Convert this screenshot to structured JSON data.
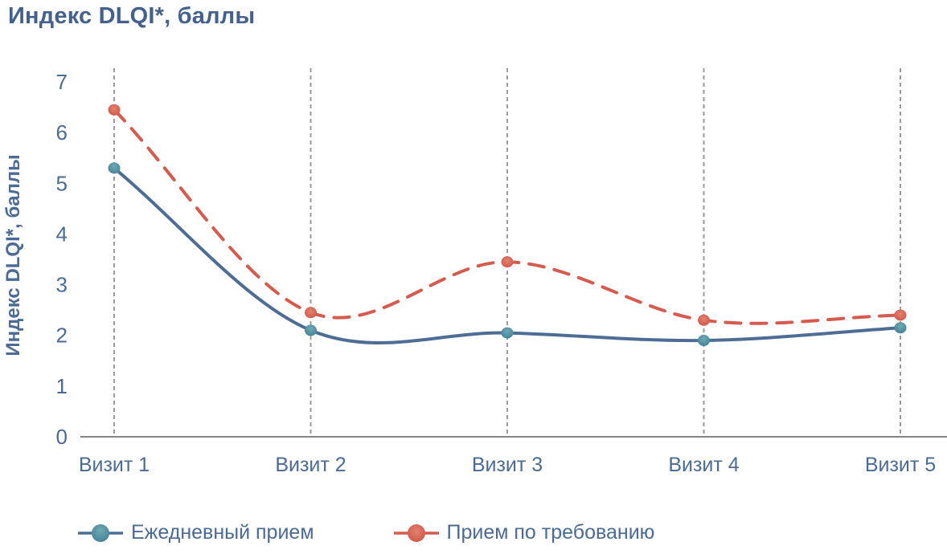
{
  "title": "Индекс DLQI*, баллы",
  "chart_data": {
    "type": "line",
    "title": "Индекс DLQI*, баллы",
    "xlabel": "",
    "ylabel": "Индекс DLQI*, баллы",
    "categories": [
      "Визит 1",
      "Визит 2",
      "Визит 3",
      "Визит 4",
      "Визит 5"
    ],
    "y_ticks": [
      0,
      1,
      2,
      3,
      4,
      5,
      6,
      7
    ],
    "ylim": [
      0,
      7
    ],
    "grid": "vertical-dashed-gridlines-only",
    "curve": "smoothed-spline",
    "legend_position": "bottom",
    "series": [
      {
        "name": "Ежедневный прием",
        "values": [
          5.3,
          2.1,
          2.05,
          1.9,
          2.15
        ],
        "style": "solid",
        "line_color": "#4e6d96",
        "marker_color": "#4d8fa0"
      },
      {
        "name": "Прием по требованию",
        "values": [
          6.45,
          2.45,
          3.45,
          2.3,
          2.4
        ],
        "style": "dashed",
        "line_color": "#d65a4d",
        "marker_color": "#d4584c"
      }
    ]
  },
  "colors": {
    "text": "#4a6b96",
    "title_text": "#44618e",
    "gridline": "#9b9b9b",
    "axis_line": "#848484",
    "background": "#ffffff"
  }
}
